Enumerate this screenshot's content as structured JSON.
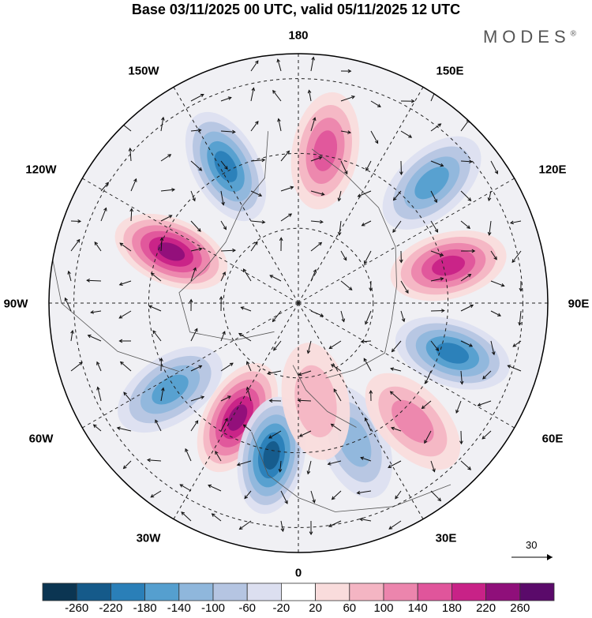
{
  "title": "Base 03/11/2025 00 UTC, valid 05/11/2025 12 UTC",
  "brand": "MODES",
  "brand_mark": "®",
  "longitude_labels": {
    "top": "180",
    "bottom": "0",
    "left": "90W",
    "right": "90E",
    "upper_left_1": "150W",
    "upper_left_2": "120W",
    "lower_left_1": "60W",
    "lower_left_2": "30W",
    "upper_right_1": "150E",
    "upper_right_2": "120E",
    "lower_right_1": "60E",
    "lower_right_2": "30E"
  },
  "vector_scale": {
    "label": "30"
  },
  "colorbar": {
    "labels": [
      "-260",
      "-220",
      "-180",
      "-140",
      "-100",
      "-60",
      "-20",
      "20",
      "60",
      "100",
      "140",
      "180",
      "220",
      "260"
    ],
    "colors": [
      "#0b3552",
      "#155a8a",
      "#2a7fb8",
      "#559fcf",
      "#8fb7dc",
      "#b5c5e2",
      "#dcdff0",
      "#ffffff",
      "#f9dcdc",
      "#f4b5c3",
      "#ec85ad",
      "#e0559b",
      "#c82287",
      "#8f0f7a",
      "#5a0a6a"
    ]
  },
  "anomalies": [
    {
      "lon_deg": 170,
      "colat": 0.62,
      "value": 170
    },
    {
      "lon_deg": 132,
      "colat": 0.72,
      "value": -140
    },
    {
      "lon_deg": -152,
      "colat": 0.62,
      "value": -190
    },
    {
      "lon_deg": -112,
      "colat": 0.55,
      "value": 220
    },
    {
      "lon_deg": 104,
      "colat": 0.62,
      "value": 210
    },
    {
      "lon_deg": 72,
      "colat": 0.65,
      "value": -190
    },
    {
      "lon_deg": -56,
      "colat": 0.62,
      "value": -170
    },
    {
      "lon_deg": -28,
      "colat": 0.52,
      "value": 220
    },
    {
      "lon_deg": -10,
      "colat": 0.62,
      "value": -220
    },
    {
      "lon_deg": 22,
      "colat": 0.6,
      "value": -110
    },
    {
      "lon_deg": 44,
      "colat": 0.66,
      "value": 110
    },
    {
      "lon_deg": 10,
      "colat": 0.4,
      "value": 60
    }
  ]
}
